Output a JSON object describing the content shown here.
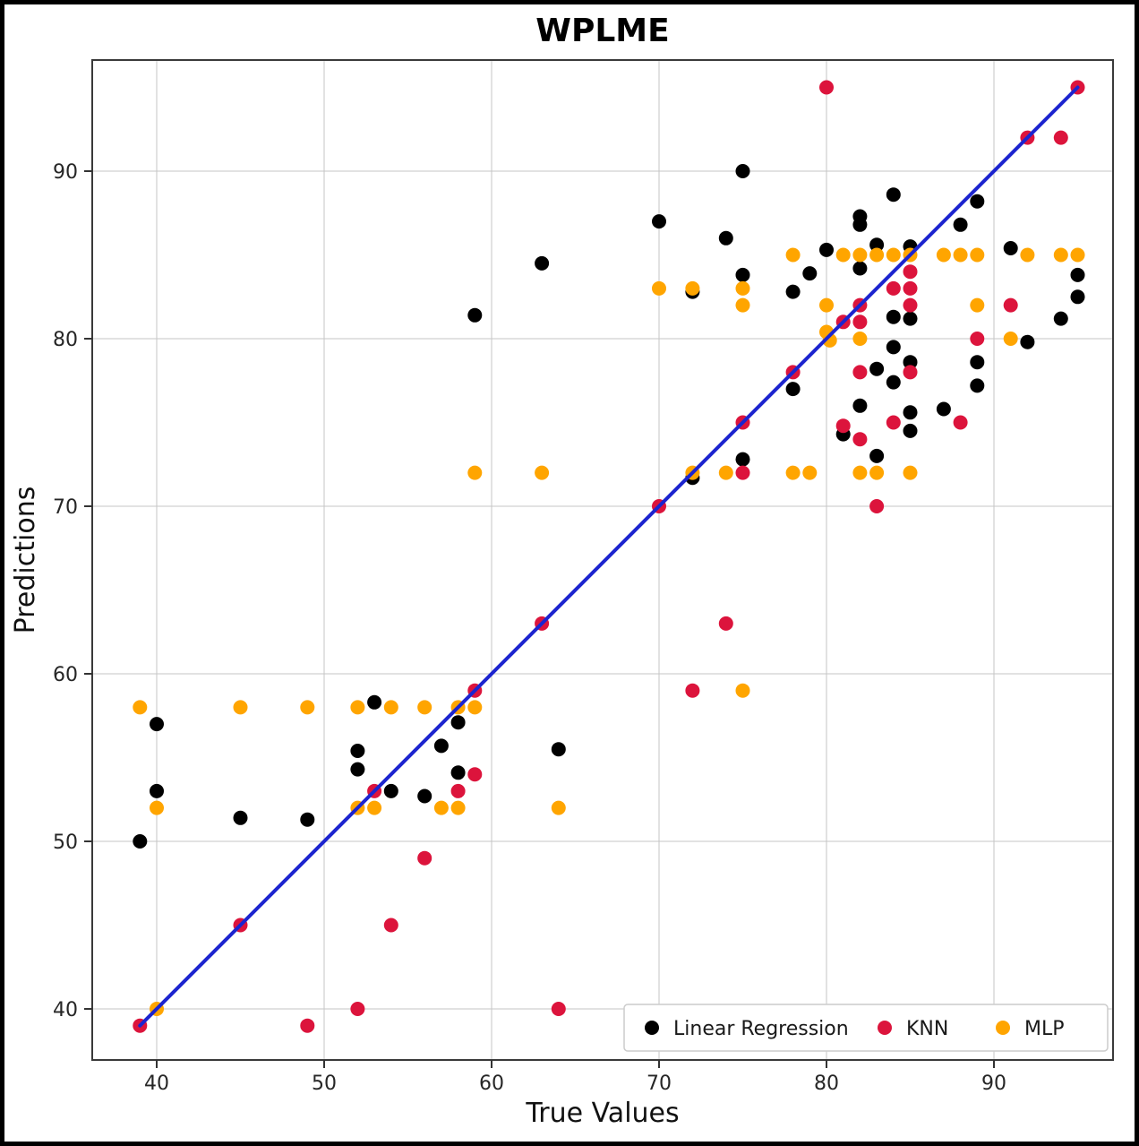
{
  "title": "WPLME",
  "axes": {
    "xlabel": "True Values",
    "ylabel": "Predictions"
  },
  "legend": {
    "position": "lower right",
    "items": [
      "Linear Regression",
      "KNN",
      "MLP"
    ]
  },
  "colors": {
    "background": "#ffffff",
    "frame": "#000000",
    "grid": "#c6c6c6",
    "identity_line": "#1c24cf"
  },
  "chart_data": {
    "type": "scatter",
    "title": "WPLME",
    "xlabel": "True Values",
    "ylabel": "Predictions",
    "xlim": [
      36.2,
      97.3
    ],
    "ylim": [
      36.8,
      96.6
    ],
    "xticks": [
      40,
      50,
      60,
      70,
      80,
      90
    ],
    "yticks": [
      40,
      50,
      60,
      70,
      80,
      90
    ],
    "grid": true,
    "legend_position": "lower right",
    "identity_line": {
      "color": "#1c24cf",
      "from": [
        39,
        39
      ],
      "to": [
        95,
        95
      ]
    },
    "series": [
      {
        "name": "Linear Regression",
        "color": "#000000",
        "points": [
          [
            39,
            50
          ],
          [
            40,
            57
          ],
          [
            40,
            53
          ],
          [
            45,
            51.4
          ],
          [
            49,
            51.3
          ],
          [
            52,
            55.4
          ],
          [
            52,
            54.3
          ],
          [
            53,
            58.3
          ],
          [
            54,
            53
          ],
          [
            56,
            52.7
          ],
          [
            57,
            55.7
          ],
          [
            58,
            57.1
          ],
          [
            58,
            54.1
          ],
          [
            59,
            81.4
          ],
          [
            63,
            84.5
          ],
          [
            64,
            55.5
          ],
          [
            70,
            87
          ],
          [
            72,
            82.8
          ],
          [
            72,
            71.7
          ],
          [
            74,
            86
          ],
          [
            75,
            90
          ],
          [
            75,
            83.8
          ],
          [
            75,
            72.8
          ],
          [
            78,
            82.8
          ],
          [
            78,
            77
          ],
          [
            79,
            83.9
          ],
          [
            80,
            85.3
          ],
          [
            81,
            74.3
          ],
          [
            82,
            87.3
          ],
          [
            82,
            86.8
          ],
          [
            82,
            84.2
          ],
          [
            82,
            76
          ],
          [
            83,
            85.6
          ],
          [
            83,
            78.2
          ],
          [
            83,
            73
          ],
          [
            84,
            88.6
          ],
          [
            84,
            81.3
          ],
          [
            84,
            79.5
          ],
          [
            84,
            77.4
          ],
          [
            85,
            85.5
          ],
          [
            85,
            81.2
          ],
          [
            85,
            78.6
          ],
          [
            85,
            75.6
          ],
          [
            85,
            74.5
          ],
          [
            87,
            75.8
          ],
          [
            88,
            86.8
          ],
          [
            89,
            88.2
          ],
          [
            89,
            78.6
          ],
          [
            89,
            77.2
          ],
          [
            91,
            85.4
          ],
          [
            92,
            79.8
          ],
          [
            94,
            81.2
          ],
          [
            95,
            83.8
          ],
          [
            95,
            82.5
          ]
        ]
      },
      {
        "name": "KNN",
        "color": "#dc143c",
        "points": [
          [
            39,
            39
          ],
          [
            45,
            45
          ],
          [
            49,
            39
          ],
          [
            52,
            40
          ],
          [
            53,
            53
          ],
          [
            54,
            45
          ],
          [
            56,
            49
          ],
          [
            58,
            53
          ],
          [
            59,
            54
          ],
          [
            59,
            59
          ],
          [
            63,
            63
          ],
          [
            64,
            40
          ],
          [
            70,
            70
          ],
          [
            72,
            59
          ],
          [
            74,
            63
          ],
          [
            75,
            72
          ],
          [
            75,
            75
          ],
          [
            78,
            78
          ],
          [
            80,
            95
          ],
          [
            81,
            81
          ],
          [
            81,
            74.8
          ],
          [
            82,
            82
          ],
          [
            82,
            81
          ],
          [
            82,
            78
          ],
          [
            82,
            74
          ],
          [
            83,
            70
          ],
          [
            84,
            83
          ],
          [
            84,
            75
          ],
          [
            85,
            84
          ],
          [
            85,
            83
          ],
          [
            85,
            82
          ],
          [
            85,
            78
          ],
          [
            88,
            75
          ],
          [
            89,
            80
          ],
          [
            91,
            82
          ],
          [
            92,
            92
          ],
          [
            94,
            92
          ],
          [
            95,
            95
          ]
        ]
      },
      {
        "name": "MLP",
        "color": "#ffa500",
        "points": [
          [
            39,
            58
          ],
          [
            40,
            52
          ],
          [
            40,
            40
          ],
          [
            45,
            58
          ],
          [
            49,
            58
          ],
          [
            52,
            58
          ],
          [
            52,
            52
          ],
          [
            53,
            52
          ],
          [
            54,
            58
          ],
          [
            56,
            58
          ],
          [
            57,
            52
          ],
          [
            58,
            58
          ],
          [
            58,
            52
          ],
          [
            59,
            58
          ],
          [
            59,
            72
          ],
          [
            63,
            72
          ],
          [
            64,
            52
          ],
          [
            70,
            83
          ],
          [
            72,
            83
          ],
          [
            72,
            72
          ],
          [
            74,
            72
          ],
          [
            75,
            83
          ],
          [
            75,
            82
          ],
          [
            75,
            59
          ],
          [
            78,
            85
          ],
          [
            78,
            72
          ],
          [
            79,
            72
          ],
          [
            80,
            82
          ],
          [
            80,
            80.4
          ],
          [
            80.2,
            79.9
          ],
          [
            81,
            85
          ],
          [
            82,
            85
          ],
          [
            82,
            80
          ],
          [
            82,
            72
          ],
          [
            83,
            85
          ],
          [
            83,
            72
          ],
          [
            84,
            85
          ],
          [
            85,
            85
          ],
          [
            85,
            72
          ],
          [
            87,
            85
          ],
          [
            88,
            85
          ],
          [
            89,
            85
          ],
          [
            89,
            82
          ],
          [
            91,
            80
          ],
          [
            92,
            85
          ],
          [
            94,
            85
          ],
          [
            95,
            85
          ]
        ]
      }
    ]
  }
}
